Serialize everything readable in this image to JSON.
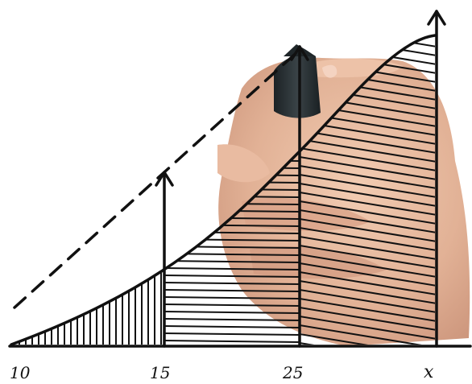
{
  "axis_labels": {
    "a": "10",
    "b": "15",
    "c": "25",
    "d": "x"
  },
  "colors": {
    "ink": "#111111",
    "skin": "#e3b296",
    "marker": "#2b3336"
  }
}
